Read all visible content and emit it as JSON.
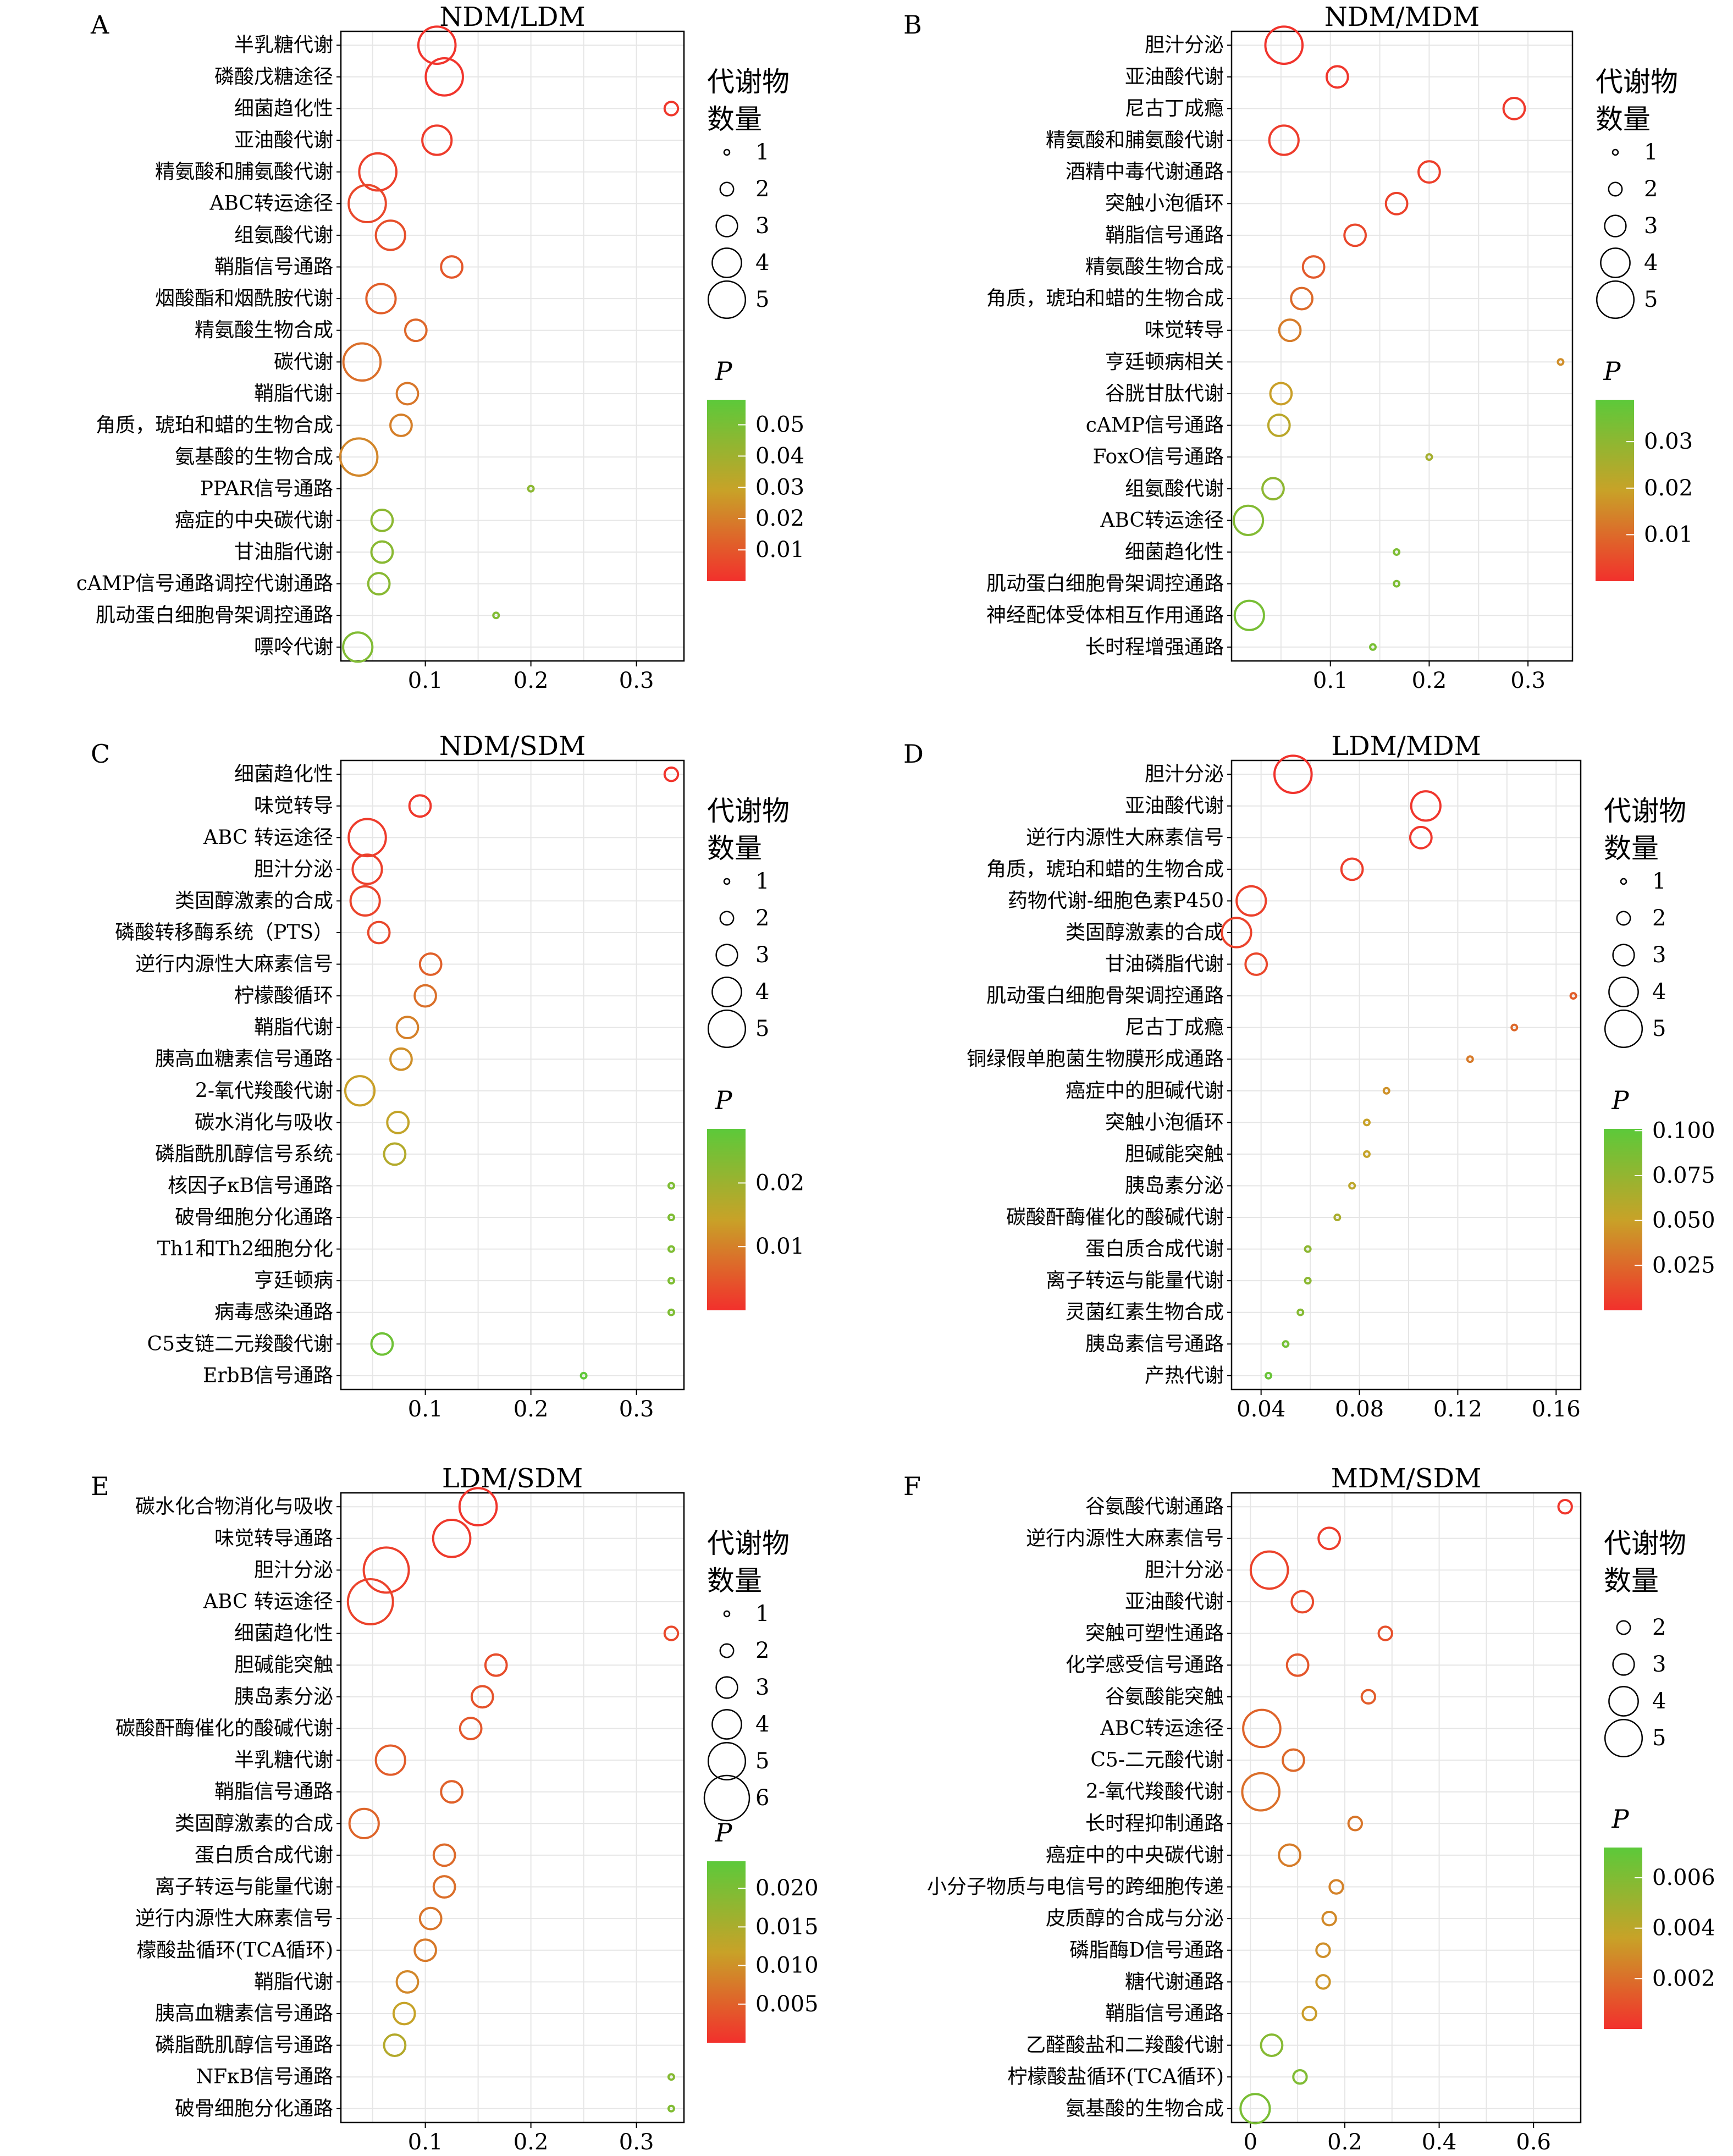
{
  "colors": {
    "p_high": "#5cc93a",
    "p_mid": "#c8a228",
    "p_low": "#f2302c",
    "grid": "#e6e6e6",
    "axis": "#000000"
  },
  "chart_data": [
    {
      "type": "scatter",
      "panel_label": "A",
      "title": "NDM/LDM",
      "xlim": [
        0.02,
        0.345
      ],
      "xticks": [
        0.1,
        0.2,
        0.3
      ],
      "xtick_labels": [
        "0.1",
        "0.2",
        "0.3"
      ],
      "grid": true,
      "categories": [
        "半乳糖代谢",
        "磷酸戊糖途径",
        "细菌趋化性",
        "亚油酸代谢",
        "精氨酸和脯氨酸代谢",
        "ABC转运途径",
        "组氨酸代谢",
        "鞘脂信号通路",
        "烟酸酯和烟酰胺代谢",
        "精氨酸生物合成",
        "碳代谢",
        "鞘脂代谢",
        "角质，琥珀和蜡的生物合成",
        "氨基酸的生物合成",
        "PPAR信号通路",
        "癌症的中央碳代谢",
        "甘油脂代谢",
        "cAMP信号通路调控代谢通路",
        "肌动蛋白细胞骨架调控通路",
        "嘌呤代谢"
      ],
      "x": [
        0.111,
        0.118,
        0.333,
        0.111,
        0.055,
        0.045,
        0.067,
        0.125,
        0.058,
        0.091,
        0.04,
        0.083,
        0.077,
        0.037,
        0.2,
        0.059,
        0.059,
        0.056,
        0.167,
        0.036
      ],
      "count": [
        5,
        5,
        2,
        4,
        5,
        5,
        4,
        3,
        4,
        3,
        5,
        3,
        3,
        5,
        1,
        3,
        3,
        3,
        1,
        4
      ],
      "p": [
        0.001,
        0.001,
        0.002,
        0.003,
        0.004,
        0.006,
        0.008,
        0.01,
        0.012,
        0.014,
        0.016,
        0.018,
        0.02,
        0.022,
        0.045,
        0.045,
        0.046,
        0.046,
        0.048,
        0.048
      ],
      "size_legend": {
        "title": [
          "代谢物",
          "数量"
        ],
        "values": [
          1,
          2,
          3,
          4,
          5
        ],
        "labels": [
          "1",
          "2",
          "3",
          "4",
          "5"
        ]
      },
      "color_legend": {
        "title": "P",
        "range": [
          0.0,
          0.058
        ],
        "ticks": [
          0.01,
          0.02,
          0.03,
          0.04,
          0.05
        ],
        "tick_labels": [
          "0.01",
          "0.02",
          "0.03",
          "0.04",
          "0.05"
        ]
      }
    },
    {
      "type": "scatter",
      "panel_label": "B",
      "title": "NDM/MDM",
      "xlim": [
        0.0,
        0.345
      ],
      "xticks": [
        0.1,
        0.2,
        0.3
      ],
      "xtick_labels": [
        "0.1",
        "0.2",
        "0.3"
      ],
      "grid": true,
      "categories": [
        "胆汁分泌",
        "亚油酸代谢",
        "尼古丁成瘾",
        "精氨酸和脯氨酸代谢",
        "酒精中毒代谢通路",
        "突触小泡循环",
        "鞘脂信号通路",
        "精氨酸生物合成",
        "角质，琥珀和蜡的生物合成",
        "味觉转导",
        "亨廷顿病相关",
        "谷胱甘肽代谢",
        "cAMP信号通路",
        "FoxO信号通路",
        "组氨酸代谢",
        "ABC转运途径",
        "细菌趋化性",
        "肌动蛋白细胞骨架调控通路",
        "神经配体受体相互作用通路",
        "长时程增强通路"
      ],
      "x": [
        0.053,
        0.107,
        0.286,
        0.053,
        0.2,
        0.167,
        0.125,
        0.083,
        0.071,
        0.059,
        0.333,
        0.05,
        0.048,
        0.2,
        0.042,
        0.017,
        0.167,
        0.167,
        0.018,
        0.143
      ],
      "count": [
        5,
        3,
        3,
        4,
        3,
        3,
        3,
        3,
        3,
        3,
        1,
        3,
        3,
        1,
        3,
        4,
        1,
        1,
        4,
        1
      ],
      "p": [
        0.0005,
        0.001,
        0.0015,
        0.002,
        0.0025,
        0.003,
        0.004,
        0.007,
        0.01,
        0.013,
        0.016,
        0.019,
        0.022,
        0.026,
        0.03,
        0.032,
        0.033,
        0.033,
        0.034,
        0.034
      ],
      "size_legend": {
        "title": [
          "代谢物",
          "数量"
        ],
        "values": [
          1,
          2,
          3,
          4,
          5
        ],
        "labels": [
          "1",
          "2",
          "3",
          "4",
          "5"
        ]
      },
      "color_legend": {
        "title": "P",
        "range": [
          0.0,
          0.039
        ],
        "ticks": [
          0.01,
          0.02,
          0.03
        ],
        "tick_labels": [
          "0.01",
          "0.02",
          "0.03"
        ]
      }
    },
    {
      "type": "scatter",
      "panel_label": "C",
      "title": "NDM/SDM",
      "xlim": [
        0.02,
        0.345
      ],
      "xticks": [
        0.1,
        0.2,
        0.3
      ],
      "xtick_labels": [
        "0.1",
        "0.2",
        "0.3"
      ],
      "grid": true,
      "categories": [
        "细菌趋化性",
        "味觉转导",
        "ABC 转运途径",
        "胆汁分泌",
        "类固醇激素的合成",
        "磷酸转移酶系统（PTS）",
        "逆行内源性大麻素信号",
        "柠檬酸循环",
        "鞘脂代谢",
        "胰高血糖素信号通路",
        "2-氧代羧酸代谢",
        "碳水消化与吸收",
        "磷脂酰肌醇信号系统",
        "核因子κB信号通路",
        "破骨细胞分化通路",
        "Th1和Th2细胞分化",
        "亨廷顿病",
        "病毒感染通路",
        "C5支链二元羧酸代谢",
        "ErbB信号通路"
      ],
      "x": [
        0.333,
        0.095,
        0.045,
        0.045,
        0.043,
        0.056,
        0.105,
        0.1,
        0.083,
        0.077,
        0.038,
        0.074,
        0.071,
        0.333,
        0.333,
        0.333,
        0.333,
        0.333,
        0.059,
        0.25
      ],
      "count": [
        2,
        3,
        5,
        4,
        4,
        3,
        3,
        3,
        3,
        3,
        4,
        3,
        3,
        1,
        1,
        1,
        1,
        1,
        3,
        1
      ],
      "p": [
        0.0005,
        0.001,
        0.0015,
        0.002,
        0.0025,
        0.003,
        0.006,
        0.008,
        0.01,
        0.012,
        0.014,
        0.015,
        0.017,
        0.024,
        0.024,
        0.024,
        0.024,
        0.024,
        0.026,
        0.028
      ],
      "size_legend": {
        "title": [
          "代谢物",
          "数量"
        ],
        "values": [
          1,
          2,
          3,
          4,
          5
        ],
        "labels": [
          "1",
          "2",
          "3",
          "4",
          "5"
        ]
      },
      "color_legend": {
        "title": "P",
        "range": [
          0.0,
          0.0285
        ],
        "ticks": [
          0.01,
          0.02
        ],
        "tick_labels": [
          "0.01",
          "0.02"
        ]
      }
    },
    {
      "type": "scatter",
      "panel_label": "D",
      "title": "LDM/MDM",
      "xlim": [
        0.028,
        0.17
      ],
      "xticks": [
        0.04,
        0.08,
        0.12,
        0.16
      ],
      "xtick_labels": [
        "0.04",
        "0.08",
        "0.12",
        "0.16"
      ],
      "grid": true,
      "categories": [
        "胆汁分泌",
        "亚油酸代谢",
        "逆行内源性大麻素信号",
        "角质，琥珀和蜡的生物合成",
        "药物代谢-细胞色素P450",
        "类固醇激素的合成",
        "甘油磷脂代谢",
        "肌动蛋白细胞骨架调控通路",
        "尼古丁成瘾",
        "铜绿假单胞菌生物膜形成通路",
        "癌症中的胆碱代谢",
        "突触小泡循环",
        "胆碱能突触",
        "胰岛素分泌",
        "碳酸酐酶催化的酸碱代谢",
        "蛋白质合成代谢",
        "离子转运与能量代谢",
        "灵菌红素生物合成",
        "胰岛素信号通路",
        "产热代谢"
      ],
      "x": [
        0.053,
        0.107,
        0.105,
        0.077,
        0.036,
        0.03,
        0.038,
        0.167,
        0.143,
        0.125,
        0.091,
        0.083,
        0.083,
        0.077,
        0.071,
        0.059,
        0.059,
        0.056,
        0.05,
        0.043
      ],
      "count": [
        5,
        4,
        3,
        3,
        4,
        4,
        3,
        1,
        1,
        1,
        1,
        1,
        1,
        1,
        1,
        1,
        1,
        1,
        1,
        1
      ],
      "p": [
        0.001,
        0.002,
        0.003,
        0.006,
        0.007,
        0.008,
        0.01,
        0.02,
        0.025,
        0.033,
        0.043,
        0.05,
        0.052,
        0.056,
        0.065,
        0.078,
        0.079,
        0.082,
        0.09,
        0.095
      ],
      "size_legend": {
        "title": [
          "代谢物",
          "数量"
        ],
        "values": [
          1,
          2,
          3,
          4,
          5
        ],
        "labels": [
          "1",
          "2",
          "3",
          "4",
          "5"
        ]
      },
      "color_legend": {
        "title": "P",
        "range": [
          0.0,
          0.101
        ],
        "ticks": [
          0.025,
          0.05,
          0.075,
          0.1
        ],
        "tick_labels": [
          "0.025",
          "0.050",
          "0.075",
          "0.100"
        ]
      }
    },
    {
      "type": "scatter",
      "panel_label": "E",
      "title": "LDM/SDM",
      "xlim": [
        0.02,
        0.345
      ],
      "xticks": [
        0.1,
        0.2,
        0.3
      ],
      "xtick_labels": [
        "0.1",
        "0.2",
        "0.3"
      ],
      "grid": true,
      "categories": [
        "碳水化合物消化与吸收",
        "味觉转导通路",
        "胆汁分泌",
        "ABC 转运途径",
        "细菌趋化性",
        "胆碱能突触",
        "胰岛素分泌",
        "碳酸酐酶催化的酸碱代谢",
        "半乳糖代谢",
        "鞘脂信号通路",
        "类固醇激素的合成",
        "蛋白质合成代谢",
        "离子转运与能量代谢",
        "逆行内源性大麻素信号",
        "檬酸盐循环(TCA循环)",
        "鞘脂代谢",
        "胰高血糖素信号通路",
        "磷脂酰肌醇信号通路",
        "NFκB信号通路",
        "破骨细胞分化通路"
      ],
      "x": [
        0.15,
        0.125,
        0.063,
        0.048,
        0.333,
        0.167,
        0.154,
        0.143,
        0.067,
        0.125,
        0.042,
        0.118,
        0.118,
        0.105,
        0.1,
        0.083,
        0.08,
        0.071,
        0.333,
        0.333
      ],
      "count": [
        5,
        5,
        6,
        6,
        2,
        3,
        3,
        3,
        4,
        3,
        4,
        3,
        3,
        3,
        3,
        3,
        3,
        3,
        1,
        1
      ],
      "p": [
        0.0005,
        0.001,
        0.0015,
        0.002,
        0.0025,
        0.003,
        0.0035,
        0.004,
        0.0045,
        0.005,
        0.0055,
        0.006,
        0.0065,
        0.007,
        0.0075,
        0.009,
        0.012,
        0.014,
        0.019,
        0.0195
      ],
      "size_legend": {
        "title": [
          "代谢物",
          "数量"
        ],
        "values": [
          1,
          2,
          3,
          4,
          5,
          6
        ],
        "labels": [
          "1",
          "2",
          "3",
          "4",
          "5",
          "6"
        ]
      },
      "color_legend": {
        "title": "P",
        "range": [
          0.0,
          0.0235
        ],
        "ticks": [
          0.005,
          0.01,
          0.015,
          0.02
        ],
        "tick_labels": [
          "0.005",
          "0.010",
          "0.015",
          "0.020"
        ]
      }
    },
    {
      "type": "scatter",
      "panel_label": "F",
      "title": "MDM/SDM",
      "xlim": [
        -0.04,
        0.7
      ],
      "xticks": [
        0.0,
        0.2,
        0.4,
        0.6
      ],
      "xtick_labels": [
        "0",
        "0.2",
        "0.4",
        "0.6"
      ],
      "grid": true,
      "categories": [
        "谷氨酸代谢通路",
        "逆行内源性大麻素信号",
        "胆汁分泌",
        "亚油酸代谢",
        "突触可塑性通路",
        "化学感受信号通路",
        "谷氨酸能突触",
        "ABC转运途径",
        "C5-二元酸代谢",
        "2-氧代羧酸代谢",
        "长时程抑制通路",
        "癌症中的中央碳代谢",
        "小分子物质与电信号的跨细胞传递",
        "皮质醇的合成与分泌",
        "磷脂酶D信号通路",
        "糖代谢通路",
        "鞘脂信号通路",
        "乙醛酸盐和二羧酸代谢",
        "柠檬酸盐循环(TCA循环)",
        "氨基酸的生物合成"
      ],
      "x": [
        0.667,
        0.167,
        0.04,
        0.11,
        0.286,
        0.1,
        0.25,
        0.024,
        0.091,
        0.022,
        0.222,
        0.083,
        0.182,
        0.167,
        0.154,
        0.154,
        0.125,
        0.045,
        0.105,
        0.01
      ],
      "count": [
        2,
        3,
        5,
        3,
        2,
        3,
        2,
        5,
        3,
        5,
        2,
        3,
        2,
        2,
        2,
        2,
        2,
        3,
        2,
        4
      ],
      "p": [
        0.0002,
        0.0004,
        0.0006,
        0.0008,
        0.001,
        0.0012,
        0.0014,
        0.0016,
        0.0018,
        0.002,
        0.0022,
        0.0024,
        0.0026,
        0.0028,
        0.003,
        0.0032,
        0.0034,
        0.0058,
        0.006,
        0.0062
      ],
      "size_legend": {
        "title": [
          "代谢物",
          "数量"
        ],
        "values": [
          2,
          3,
          4,
          5
        ],
        "labels": [
          "2",
          "3",
          "4",
          "5"
        ]
      },
      "color_legend": {
        "title": "P",
        "range": [
          0.0,
          0.0072
        ],
        "ticks": [
          0.002,
          0.004,
          0.006
        ],
        "tick_labels": [
          "0.002",
          "0.004",
          "0.006"
        ]
      }
    }
  ]
}
